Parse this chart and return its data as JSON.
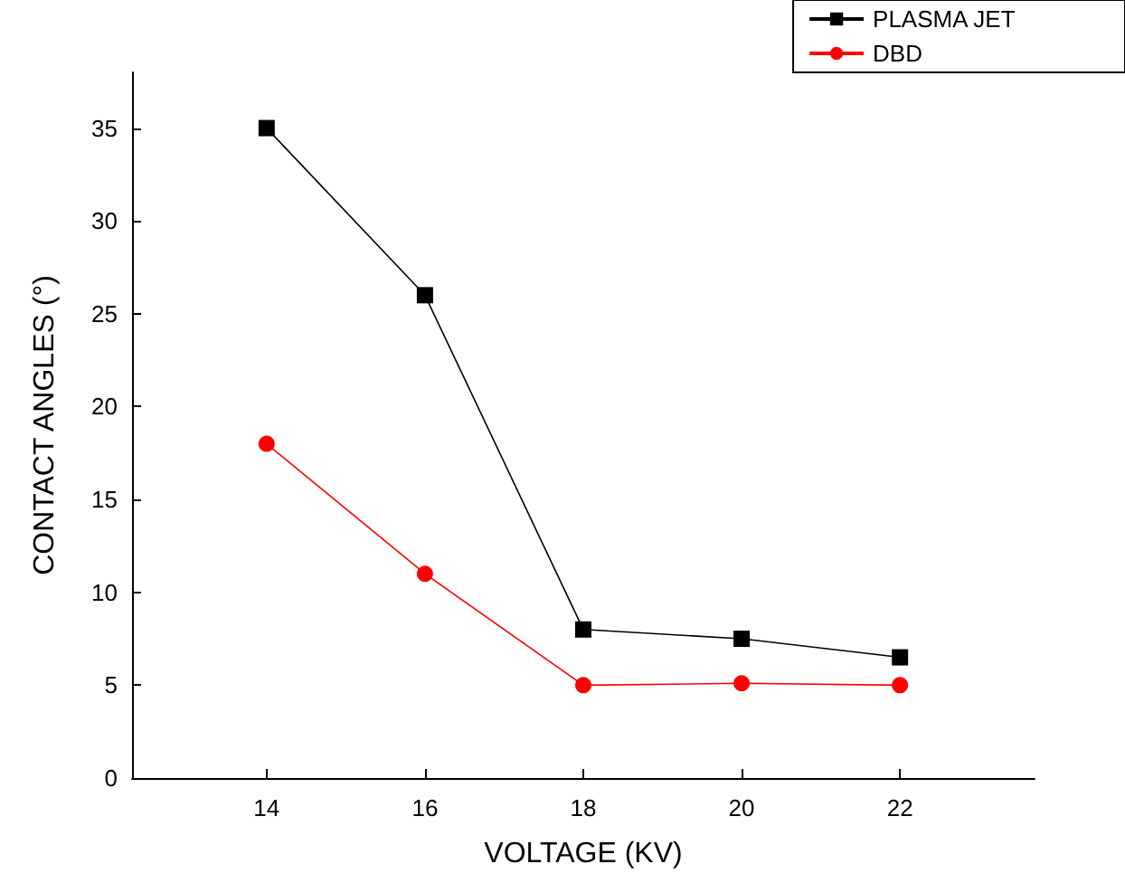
{
  "chart_data": {
    "type": "line",
    "xlabel": "VOLTAGE (KV)",
    "ylabel": "CONTACT ANGLES (°)",
    "x": [
      14,
      16,
      18,
      20,
      22
    ],
    "series": [
      {
        "name": "PLASMA JET",
        "color": "#000000",
        "marker": "square",
        "values": [
          35,
          26,
          8,
          7.5,
          6.5
        ]
      },
      {
        "name": "DBD",
        "color": "#ff0000",
        "marker": "circle",
        "values": [
          18,
          11,
          5,
          5.1,
          5
        ]
      }
    ],
    "xlim": [
      12.3,
      23.7
    ],
    "xticks": [
      14,
      16,
      18,
      20,
      22
    ],
    "ylim": [
      0,
      38
    ],
    "yticks": [
      0,
      5,
      10,
      15,
      20,
      25,
      30,
      35
    ],
    "grid": false,
    "legend": "top right",
    "line_style": "solid"
  }
}
